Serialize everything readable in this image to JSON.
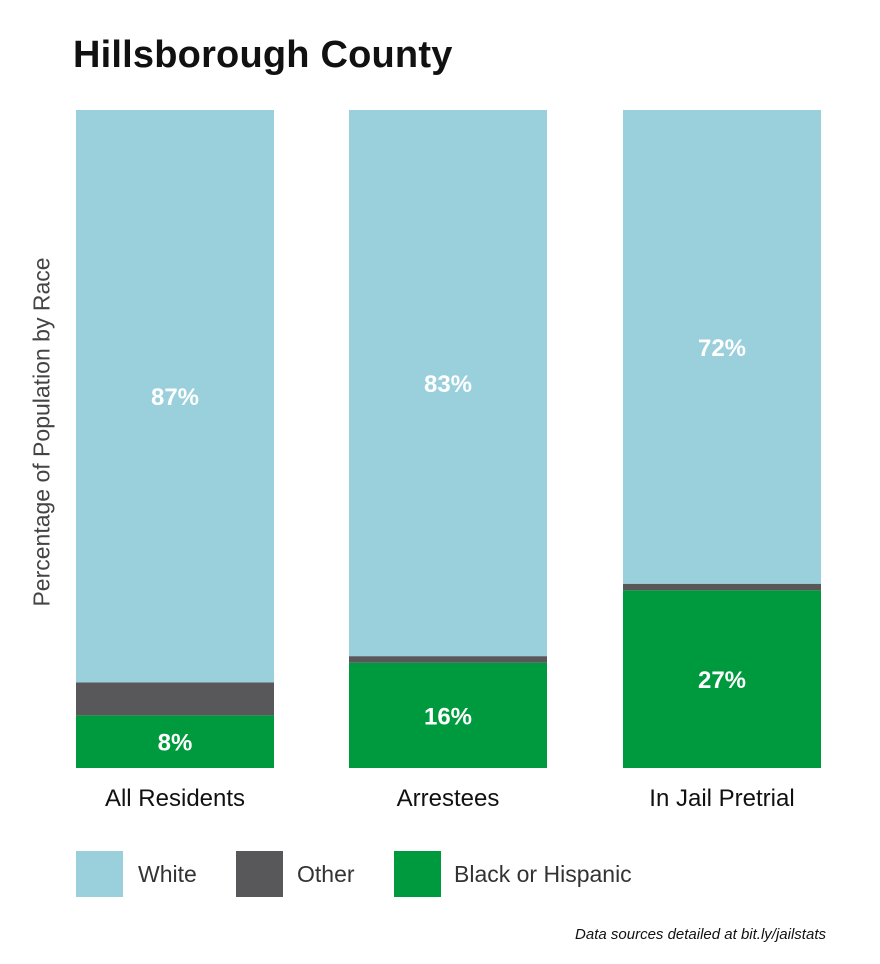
{
  "chart_data": {
    "type": "bar",
    "stacked": true,
    "title": "Hillsborough County",
    "ylabel": "Percentage of Population by Race",
    "ylim": [
      0,
      100
    ],
    "categories": [
      "All Residents",
      "Arrestees",
      "In Jail Pretrial"
    ],
    "series": [
      {
        "name": "Black or Hispanic",
        "color": "#009a3e",
        "values": [
          8,
          16,
          27
        ],
        "labels": [
          "8%",
          "16%",
          "27%"
        ]
      },
      {
        "name": "Other",
        "color": "#58585b",
        "values": [
          5,
          1,
          1
        ]
      },
      {
        "name": "White",
        "color": "#9acfdc",
        "values": [
          87,
          83,
          72
        ],
        "labels": [
          "87%",
          "83%",
          "72%"
        ]
      }
    ],
    "legend": [
      "White",
      "Other",
      "Black or Hispanic"
    ],
    "legend_position": "bottom",
    "grid": false
  },
  "source_note": "Data sources detailed at bit.ly/jailstats"
}
